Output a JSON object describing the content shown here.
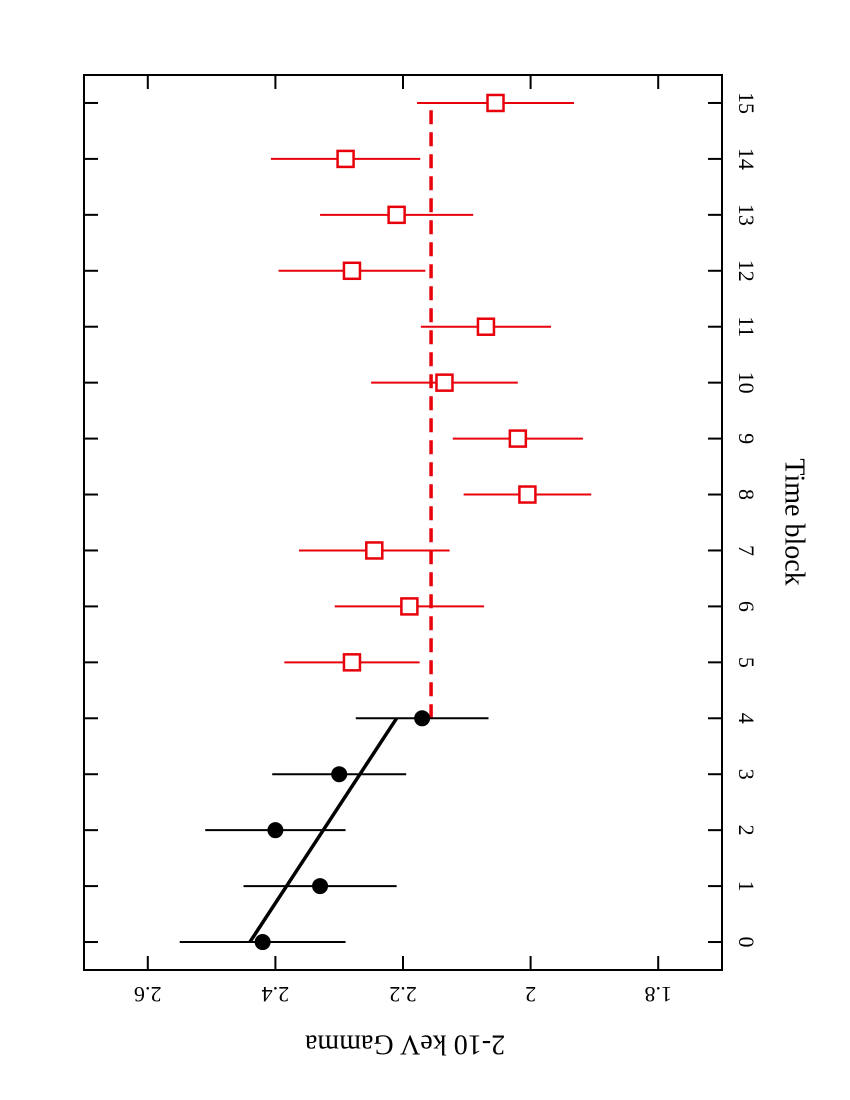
{
  "chart_data": {
    "type": "errorbar",
    "x_label": "Time block",
    "y_label": "2-10 keV Gamma",
    "xlim": [
      -0.5,
      15.5
    ],
    "ylim": [
      1.7,
      2.7
    ],
    "xticks": [
      0,
      1,
      2,
      3,
      4,
      5,
      6,
      7,
      8,
      9,
      10,
      11,
      12,
      13,
      14,
      15
    ],
    "yticks": [
      1.8,
      2,
      2.2,
      2.4,
      2.6
    ],
    "series": [
      {
        "color": "#000000",
        "marker": "circle",
        "x": [
          0,
          1,
          2,
          3,
          4
        ],
        "values": [
          2.42,
          2.33,
          2.4,
          2.3,
          2.17
        ],
        "errors": [
          0.13,
          0.12,
          0.11,
          0.105,
          0.104
        ]
      },
      {
        "color": "#e8000b",
        "marker": "square",
        "x": [
          5,
          6,
          7,
          8,
          9,
          10,
          11,
          12,
          13,
          14,
          15
        ],
        "values": [
          2.28,
          2.19,
          2.245,
          2.005,
          2.02,
          2.135,
          2.07,
          2.28,
          2.21,
          2.29,
          2.055
        ],
        "errors": [
          0.106,
          0.117,
          0.118,
          0.1,
          0.102,
          0.115,
          0.102,
          0.115,
          0.12,
          0.117,
          0.123
        ]
      }
    ],
    "lines": [
      {
        "color": "#000000",
        "dashed": false,
        "x": [
          0,
          4
        ],
        "values": [
          2.44,
          2.21
        ]
      },
      {
        "color": "#e8000b",
        "dashed": true,
        "x": [
          4,
          15
        ],
        "values": [
          2.156,
          2.156
        ]
      }
    ]
  }
}
